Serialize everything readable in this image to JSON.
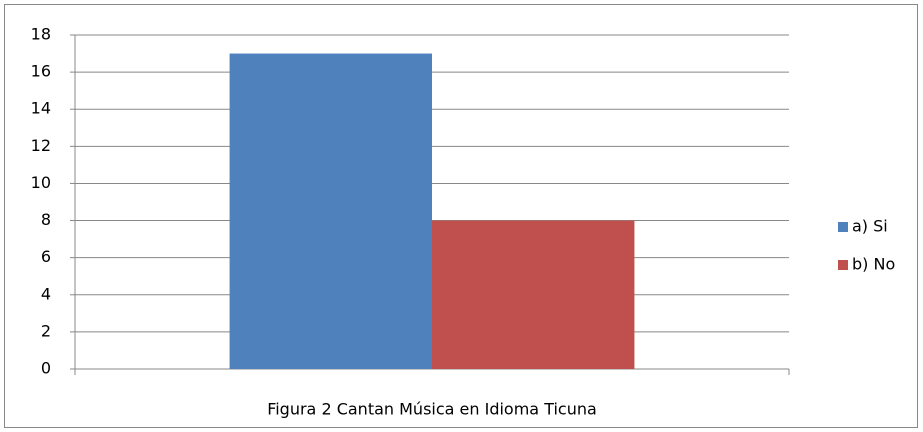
{
  "chart_data": {
    "type": "bar",
    "title": "Figura 2 Cantan Música en Idioma Ticuna",
    "categories": [
      null
    ],
    "series": [
      {
        "name": "a) Si",
        "color": "#4f81bd",
        "values": [
          17
        ]
      },
      {
        "name": "b) No",
        "color": "#c0504d",
        "values": [
          8
        ]
      }
    ],
    "ylim": [
      0,
      18
    ],
    "yticks": [
      0,
      2,
      4,
      6,
      8,
      10,
      12,
      14,
      16,
      18
    ],
    "grid": true,
    "legend": "right"
  }
}
